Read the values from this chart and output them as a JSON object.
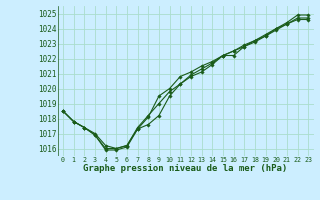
{
  "title": "Graphe pression niveau de la mer (hPa)",
  "bg_color": "#cceeff",
  "grid_color": "#aaddcc",
  "line_color": "#1a5c1a",
  "marker_color": "#1a5c1a",
  "xlim": [
    -0.5,
    23.5
  ],
  "ylim": [
    1015.5,
    1025.5
  ],
  "yticks": [
    1016,
    1017,
    1018,
    1019,
    1020,
    1021,
    1022,
    1023,
    1024,
    1025
  ],
  "xticks": [
    0,
    1,
    2,
    3,
    4,
    5,
    6,
    7,
    8,
    9,
    10,
    11,
    12,
    13,
    14,
    15,
    16,
    17,
    18,
    19,
    20,
    21,
    22,
    23
  ],
  "series": [
    [
      1018.5,
      1017.8,
      1017.4,
      1016.9,
      1016.0,
      1016.0,
      1016.2,
      1017.3,
      1017.6,
      1018.2,
      1019.5,
      1020.3,
      1020.8,
      1021.1,
      1021.6,
      1022.2,
      1022.2,
      1022.8,
      1023.1,
      1023.5,
      1024.0,
      1024.3,
      1024.6,
      1024.6
    ],
    [
      1018.5,
      1017.8,
      1017.4,
      1017.0,
      1016.2,
      1016.0,
      1016.2,
      1017.4,
      1018.2,
      1019.0,
      1019.8,
      1020.3,
      1020.9,
      1021.3,
      1021.7,
      1022.2,
      1022.5,
      1022.9,
      1023.2,
      1023.6,
      1024.0,
      1024.4,
      1024.9,
      1024.9
    ],
    [
      1018.5,
      1017.8,
      1017.4,
      1016.9,
      1015.9,
      1015.9,
      1016.1,
      1017.3,
      1018.1,
      1019.5,
      1020.0,
      1020.8,
      1021.1,
      1021.5,
      1021.8,
      1022.2,
      1022.5,
      1022.8,
      1023.2,
      1023.5,
      1023.9,
      1024.3,
      1024.7,
      1024.7
    ]
  ],
  "figsize": [
    3.2,
    2.0
  ],
  "dpi": 100
}
